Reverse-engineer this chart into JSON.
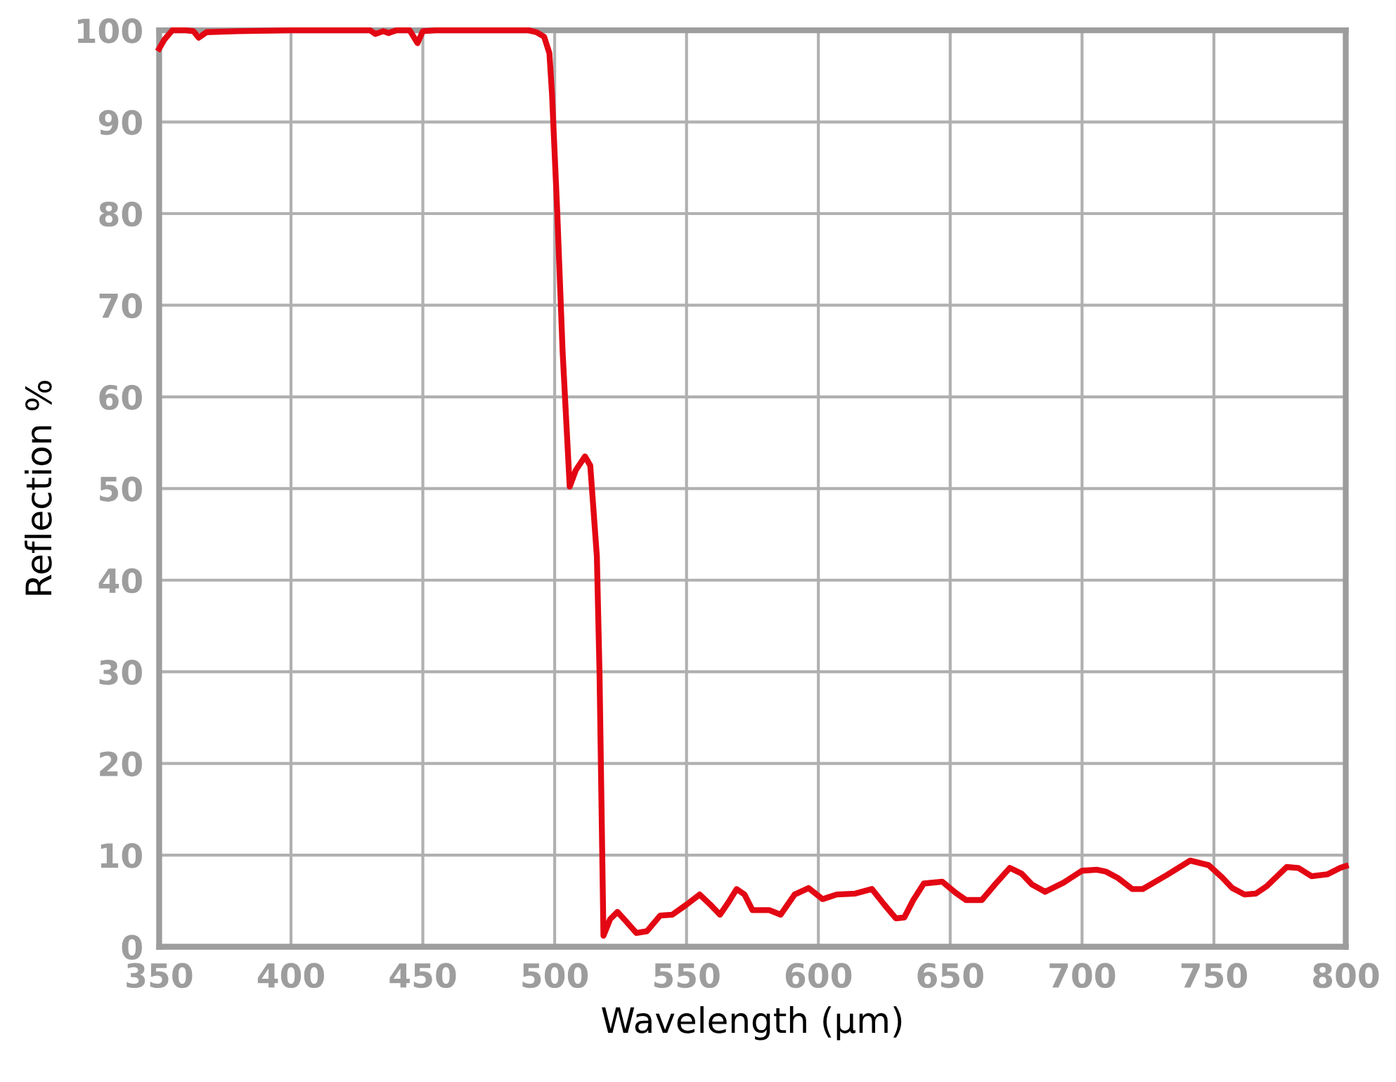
{
  "chart_data": {
    "type": "line",
    "xlabel": "Wavelength (µm)",
    "ylabel": "Reflection %",
    "xlim": [
      350,
      800
    ],
    "ylim": [
      0,
      100
    ],
    "xticks": [
      350,
      400,
      450,
      500,
      550,
      600,
      650,
      700,
      750,
      800
    ],
    "yticks": [
      0,
      10,
      20,
      30,
      40,
      50,
      60,
      70,
      80,
      90,
      100
    ],
    "grid": true,
    "legend": false,
    "marker": "none",
    "line_style": "solid",
    "series": [
      {
        "color": "#e30613",
        "x": [
          350,
          352,
          355,
          360,
          363,
          365,
          368,
          380,
          400,
          420,
          430,
          432,
          435,
          437,
          440,
          445,
          448,
          450,
          455,
          470,
          485,
          490,
          493,
          496,
          498,
          499,
          501,
          503,
          505.7,
          508,
          511.5,
          513.5,
          516,
          517,
          518.5,
          521,
          523.8,
          527,
          531,
          535,
          540,
          544.6,
          550,
          555,
          559,
          562.7,
          566,
          569,
          572,
          575,
          581.4,
          585.7,
          591,
          596.3,
          601.6,
          607,
          614,
          620.3,
          625,
          629.4,
          632.6,
          636,
          640,
          647,
          652,
          656,
          662,
          667,
          672.6,
          677,
          681,
          686,
          693,
          700,
          705.6,
          709,
          713.6,
          719,
          723,
          732,
          741,
          748,
          753,
          757,
          761.6,
          765.9,
          770,
          777.6,
          782,
          787,
          793,
          797.9,
          800
        ],
        "values": [
          98,
          99,
          100,
          100,
          99.9,
          99.2,
          99.8,
          99.9,
          100,
          100,
          100,
          99.6,
          99.9,
          99.7,
          100,
          100,
          98.6,
          99.9,
          100,
          100,
          100,
          100,
          99.8,
          99.3,
          97.5,
          93,
          80,
          65,
          50.2,
          52,
          53.5,
          52.5,
          42.6,
          30,
          1.2,
          3,
          3.8,
          2.8,
          1.5,
          1.7,
          3.4,
          3.5,
          4.6,
          5.7,
          4.6,
          3.5,
          4.9,
          6.3,
          5.7,
          4.0,
          4.0,
          3.5,
          5.7,
          6.4,
          5.2,
          5.7,
          5.8,
          6.3,
          4.6,
          3.1,
          3.2,
          5.1,
          6.9,
          7.1,
          5.9,
          5.1,
          5.1,
          6.8,
          8.6,
          8.0,
          6.8,
          6.0,
          7.0,
          8.3,
          8.4,
          8.2,
          7.5,
          6.3,
          6.3,
          7.8,
          9.4,
          8.9,
          7.6,
          6.4,
          5.7,
          5.8,
          6.6,
          8.7,
          8.6,
          7.7,
          7.9,
          8.6,
          8.8
        ]
      }
    ]
  }
}
